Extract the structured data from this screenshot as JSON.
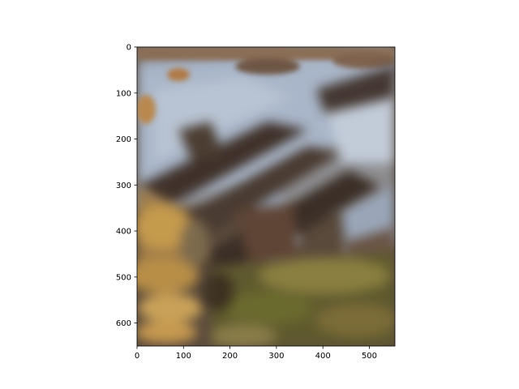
{
  "chart_data": {
    "type": "image",
    "title": "",
    "xlabel": "",
    "ylabel": "",
    "x_range": [
      0,
      555
    ],
    "y_range": [
      650,
      0
    ],
    "y_inverted": true,
    "x_ticks": [
      0,
      100,
      200,
      300,
      400,
      500
    ],
    "y_ticks": [
      0,
      100,
      200,
      300,
      400,
      500,
      600
    ],
    "grid": false,
    "legend": "none",
    "image_content": "blurred photograph of mountain slopes with snow patches, brown rock and green-yellow hillside",
    "colors": {
      "snow": "#a7b4c8",
      "rock_dark": "#3e332b",
      "rock_brown": "#7a5b40",
      "hill_golden": "#c49a4d",
      "hill_green": "#6b6a2e",
      "hill_olive": "#8a7f3f"
    }
  }
}
